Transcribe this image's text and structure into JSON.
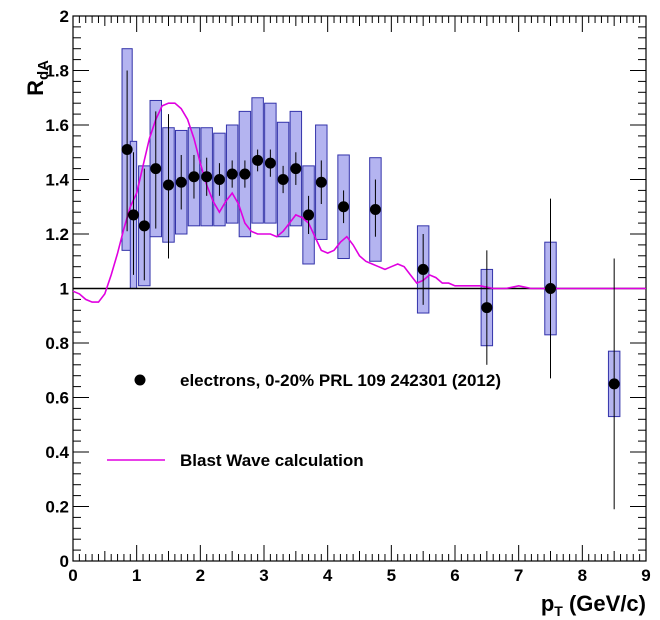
{
  "chart_data": {
    "type": "scatter",
    "xlabel": "p_T (GeV/c)",
    "xlabel_main": "p",
    "xlabel_sub": "T",
    "xlabel_rest": " (GeV/c)",
    "ylabel_main": "R",
    "ylabel_sub": "dA",
    "xlim": [
      0,
      9
    ],
    "ylim": [
      0,
      2
    ],
    "x_ticks": [
      "0",
      "1",
      "2",
      "3",
      "4",
      "5",
      "6",
      "7",
      "8",
      "9"
    ],
    "y_ticks": [
      "0",
      "0.2",
      "0.4",
      "0.6",
      "0.8",
      "1",
      "1.2",
      "1.4",
      "1.6",
      "1.8",
      "2"
    ],
    "reference_line": 1,
    "legend_position": "center-left",
    "colors": {
      "points": "#000000",
      "box_fill": "#b4b4f0",
      "box_edge": "#3333aa",
      "curve": "#e000e0"
    },
    "series": [
      {
        "name": "electrons, 0-20% PRL 109 242301 (2012)",
        "kind": "points",
        "points": [
          {
            "x": 0.85,
            "y": 1.51,
            "stat_lo": 0.3,
            "stat_hi": 0.29,
            "sys_lo": 0.37,
            "sys_hi": 0.37,
            "sys_halfwidth": 0.08
          },
          {
            "x": 0.95,
            "y": 1.27,
            "stat_lo": 0.22,
            "stat_hi": 0.23,
            "sys_lo": 0.27,
            "sys_hi": 0.27,
            "sys_halfwidth": 0.05
          },
          {
            "x": 1.12,
            "y": 1.23,
            "stat_lo": 0.2,
            "stat_hi": 0.21,
            "sys_lo": 0.22,
            "sys_hi": 0.22,
            "sys_halfwidth": 0.09
          },
          {
            "x": 1.3,
            "y": 1.44,
            "stat_lo": 0.22,
            "stat_hi": 0.21,
            "sys_lo": 0.25,
            "sys_hi": 0.25,
            "sys_halfwidth": 0.09
          },
          {
            "x": 1.5,
            "y": 1.38,
            "stat_lo": 0.27,
            "stat_hi": 0.26,
            "sys_lo": 0.21,
            "sys_hi": 0.21,
            "sys_halfwidth": 0.09
          },
          {
            "x": 1.7,
            "y": 1.39,
            "stat_lo": 0.1,
            "stat_hi": 0.1,
            "sys_lo": 0.19,
            "sys_hi": 0.19,
            "sys_halfwidth": 0.09
          },
          {
            "x": 1.9,
            "y": 1.41,
            "stat_lo": 0.08,
            "stat_hi": 0.08,
            "sys_lo": 0.18,
            "sys_hi": 0.18,
            "sys_halfwidth": 0.09
          },
          {
            "x": 2.1,
            "y": 1.41,
            "stat_lo": 0.07,
            "stat_hi": 0.07,
            "sys_lo": 0.18,
            "sys_hi": 0.18,
            "sys_halfwidth": 0.09
          },
          {
            "x": 2.3,
            "y": 1.4,
            "stat_lo": 0.06,
            "stat_hi": 0.06,
            "sys_lo": 0.17,
            "sys_hi": 0.17,
            "sys_halfwidth": 0.09
          },
          {
            "x": 2.5,
            "y": 1.42,
            "stat_lo": 0.05,
            "stat_hi": 0.05,
            "sys_lo": 0.18,
            "sys_hi": 0.18,
            "sys_halfwidth": 0.09
          },
          {
            "x": 2.7,
            "y": 1.42,
            "stat_lo": 0.05,
            "stat_hi": 0.05,
            "sys_lo": 0.23,
            "sys_hi": 0.23,
            "sys_halfwidth": 0.09
          },
          {
            "x": 2.9,
            "y": 1.47,
            "stat_lo": 0.04,
            "stat_hi": 0.04,
            "sys_lo": 0.23,
            "sys_hi": 0.23,
            "sys_halfwidth": 0.09
          },
          {
            "x": 3.1,
            "y": 1.46,
            "stat_lo": 0.05,
            "stat_hi": 0.05,
            "sys_lo": 0.22,
            "sys_hi": 0.22,
            "sys_halfwidth": 0.09
          },
          {
            "x": 3.3,
            "y": 1.4,
            "stat_lo": 0.05,
            "stat_hi": 0.05,
            "sys_lo": 0.21,
            "sys_hi": 0.21,
            "sys_halfwidth": 0.09
          },
          {
            "x": 3.5,
            "y": 1.44,
            "stat_lo": 0.06,
            "stat_hi": 0.06,
            "sys_lo": 0.21,
            "sys_hi": 0.21,
            "sys_halfwidth": 0.09
          },
          {
            "x": 3.7,
            "y": 1.27,
            "stat_lo": 0.07,
            "stat_hi": 0.07,
            "sys_lo": 0.18,
            "sys_hi": 0.18,
            "sys_halfwidth": 0.09
          },
          {
            "x": 3.9,
            "y": 1.39,
            "stat_lo": 0.08,
            "stat_hi": 0.08,
            "sys_lo": 0.21,
            "sys_hi": 0.21,
            "sys_halfwidth": 0.09
          },
          {
            "x": 4.25,
            "y": 1.3,
            "stat_lo": 0.06,
            "stat_hi": 0.06,
            "sys_lo": 0.19,
            "sys_hi": 0.19,
            "sys_halfwidth": 0.09
          },
          {
            "x": 4.75,
            "y": 1.29,
            "stat_lo": 0.1,
            "stat_hi": 0.11,
            "sys_lo": 0.19,
            "sys_hi": 0.19,
            "sys_halfwidth": 0.09
          },
          {
            "x": 5.5,
            "y": 1.07,
            "stat_lo": 0.13,
            "stat_hi": 0.13,
            "sys_lo": 0.16,
            "sys_hi": 0.16,
            "sys_halfwidth": 0.09
          },
          {
            "x": 6.5,
            "y": 0.93,
            "stat_lo": 0.21,
            "stat_hi": 0.21,
            "sys_lo": 0.14,
            "sys_hi": 0.14,
            "sys_halfwidth": 0.09
          },
          {
            "x": 7.5,
            "y": 1.0,
            "stat_lo": 0.33,
            "stat_hi": 0.33,
            "sys_lo": 0.17,
            "sys_hi": 0.17,
            "sys_halfwidth": 0.09
          },
          {
            "x": 8.5,
            "y": 0.65,
            "stat_lo": 0.46,
            "stat_hi": 0.46,
            "sys_lo": 0.12,
            "sys_hi": 0.12,
            "sys_halfwidth": 0.09
          }
        ]
      },
      {
        "name": "Blast Wave calculation",
        "kind": "line",
        "x": [
          0.0,
          0.1,
          0.2,
          0.3,
          0.4,
          0.5,
          0.6,
          0.7,
          0.8,
          0.9,
          1.0,
          1.1,
          1.2,
          1.3,
          1.4,
          1.5,
          1.6,
          1.7,
          1.8,
          1.9,
          2.0,
          2.1,
          2.2,
          2.3,
          2.4,
          2.5,
          2.6,
          2.7,
          2.8,
          2.9,
          3.0,
          3.1,
          3.2,
          3.3,
          3.4,
          3.5,
          3.6,
          3.7,
          3.8,
          3.9,
          4.0,
          4.1,
          4.2,
          4.3,
          4.4,
          4.5,
          4.6,
          4.7,
          4.8,
          4.9,
          5.0,
          5.1,
          5.2,
          5.3,
          5.4,
          5.5,
          5.6,
          5.7,
          5.8,
          5.9,
          6.0,
          6.2,
          6.4,
          6.6,
          6.8,
          7.0,
          7.2,
          7.4,
          7.6,
          7.8,
          8.0,
          8.2,
          8.4,
          8.6,
          8.8,
          9.0
        ],
        "y": [
          0.99,
          0.98,
          0.96,
          0.95,
          0.95,
          0.98,
          1.05,
          1.13,
          1.22,
          1.3,
          1.35,
          1.45,
          1.55,
          1.62,
          1.67,
          1.68,
          1.68,
          1.66,
          1.62,
          1.55,
          1.46,
          1.38,
          1.32,
          1.28,
          1.32,
          1.35,
          1.31,
          1.24,
          1.21,
          1.2,
          1.2,
          1.2,
          1.19,
          1.21,
          1.24,
          1.27,
          1.26,
          1.24,
          1.19,
          1.14,
          1.13,
          1.14,
          1.17,
          1.19,
          1.16,
          1.12,
          1.1,
          1.09,
          1.08,
          1.07,
          1.08,
          1.09,
          1.08,
          1.05,
          1.02,
          1.03,
          1.05,
          1.04,
          1.02,
          1.02,
          1.01,
          1.01,
          1.01,
          1.0,
          1.0,
          1.01,
          1.0,
          1.0,
          1.0,
          1.0,
          1.0,
          1.0,
          1.0,
          1.0,
          1.0,
          1.0
        ]
      }
    ]
  }
}
